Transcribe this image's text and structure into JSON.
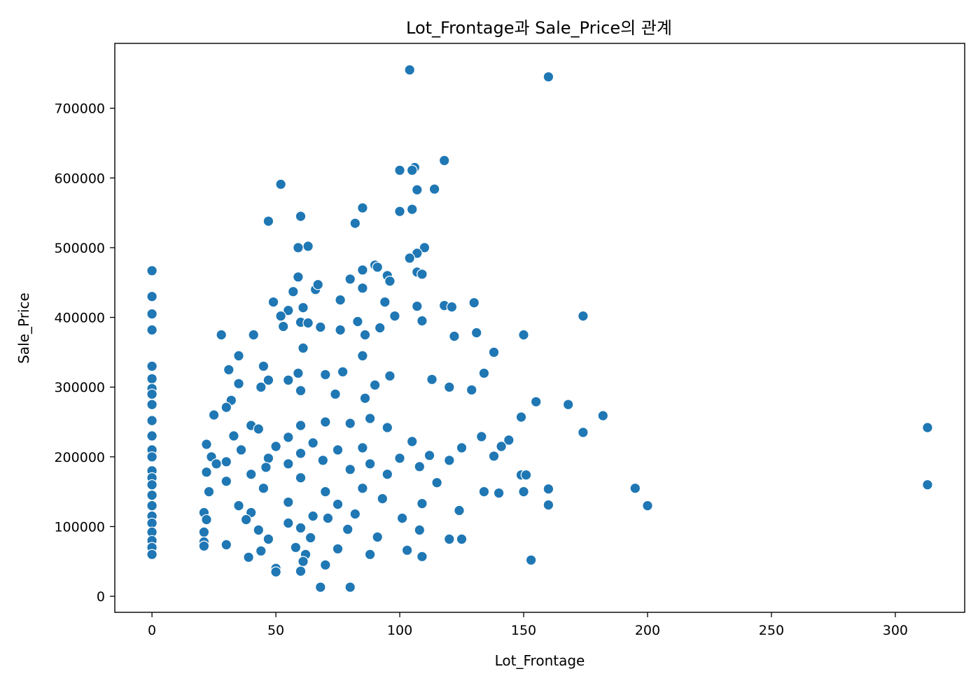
{
  "chart_data": {
    "type": "scatter",
    "title": "Lot_Frontage과 Sale_Price의 관계",
    "xlabel": "Lot_Frontage",
    "ylabel": "Sale_Price",
    "xlim": [
      -15,
      328
    ],
    "ylim": [
      -23000,
      793000
    ],
    "xticks": [
      0,
      50,
      100,
      150,
      200,
      250,
      300
    ],
    "xtick_labels": [
      "0",
      "50",
      "100",
      "150",
      "200",
      "250",
      "300"
    ],
    "yticks": [
      0,
      100000,
      200000,
      300000,
      400000,
      500000,
      600000,
      700000
    ],
    "ytick_labels": [
      "0",
      "100000",
      "200000",
      "300000",
      "400000",
      "500000",
      "600000",
      "700000"
    ],
    "marker_color": "#1f77b4",
    "marker_edge": "#ffffff",
    "grid": false,
    "points": [
      [
        104,
        755000
      ],
      [
        160,
        745000
      ],
      [
        118,
        625000
      ],
      [
        106,
        615000
      ],
      [
        100,
        611000
      ],
      [
        105,
        611000
      ],
      [
        52,
        591000
      ],
      [
        114,
        584000
      ],
      [
        107,
        583000
      ],
      [
        85,
        557000
      ],
      [
        105,
        555000
      ],
      [
        100,
        552000
      ],
      [
        60,
        545000
      ],
      [
        47,
        538000
      ],
      [
        82,
        535000
      ],
      [
        63,
        502000
      ],
      [
        59,
        500000
      ],
      [
        110,
        500000
      ],
      [
        107,
        492000
      ],
      [
        104,
        485000
      ],
      [
        90,
        475000
      ],
      [
        91,
        472000
      ],
      [
        85,
        468000
      ],
      [
        0,
        467000
      ],
      [
        107,
        465000
      ],
      [
        109,
        462000
      ],
      [
        95,
        460000
      ],
      [
        59,
        458000
      ],
      [
        96,
        452000
      ],
      [
        80,
        455000
      ],
      [
        85,
        442000
      ],
      [
        66,
        440000
      ],
      [
        67,
        447000
      ],
      [
        57,
        437000
      ],
      [
        0,
        430000
      ],
      [
        49,
        422000
      ],
      [
        76,
        425000
      ],
      [
        130,
        421000
      ],
      [
        61,
        414000
      ],
      [
        94,
        422000
      ],
      [
        118,
        417000
      ],
      [
        107,
        416000
      ],
      [
        121,
        415000
      ],
      [
        0,
        405000
      ],
      [
        174,
        402000
      ],
      [
        55,
        410000
      ],
      [
        98,
        402000
      ],
      [
        52,
        402000
      ],
      [
        60,
        393000
      ],
      [
        63,
        392000
      ],
      [
        83,
        394000
      ],
      [
        109,
        395000
      ],
      [
        92,
        385000
      ],
      [
        53,
        387000
      ],
      [
        68,
        386000
      ],
      [
        0,
        382000
      ],
      [
        76,
        382000
      ],
      [
        131,
        378000
      ],
      [
        150,
        375000
      ],
      [
        28,
        375000
      ],
      [
        41,
        375000
      ],
      [
        86,
        375000
      ],
      [
        122,
        373000
      ],
      [
        61,
        356000
      ],
      [
        35,
        345000
      ],
      [
        138,
        350000
      ],
      [
        85,
        345000
      ],
      [
        45,
        330000
      ],
      [
        31,
        325000
      ],
      [
        0,
        330000
      ],
      [
        59,
        320000
      ],
      [
        77,
        322000
      ],
      [
        70,
        318000
      ],
      [
        134,
        320000
      ],
      [
        113,
        311000
      ],
      [
        47,
        310000
      ],
      [
        0,
        312000
      ],
      [
        35,
        305000
      ],
      [
        44,
        300000
      ],
      [
        90,
        303000
      ],
      [
        55,
        310000
      ],
      [
        96,
        316000
      ],
      [
        0,
        298000
      ],
      [
        120,
        300000
      ],
      [
        129,
        296000
      ],
      [
        0,
        290000
      ],
      [
        32,
        281000
      ],
      [
        155,
        279000
      ],
      [
        168,
        275000
      ],
      [
        0,
        275000
      ],
      [
        60,
        295000
      ],
      [
        74,
        290000
      ],
      [
        86,
        284000
      ],
      [
        25,
        260000
      ],
      [
        30,
        271000
      ],
      [
        182,
        259000
      ],
      [
        149,
        257000
      ],
      [
        0,
        252000
      ],
      [
        40,
        245000
      ],
      [
        313,
        242000
      ],
      [
        60,
        245000
      ],
      [
        43,
        240000
      ],
      [
        70,
        250000
      ],
      [
        88,
        255000
      ],
      [
        80,
        248000
      ],
      [
        95,
        242000
      ],
      [
        174,
        235000
      ],
      [
        0,
        230000
      ],
      [
        33,
        230000
      ],
      [
        133,
        229000
      ],
      [
        144,
        224000
      ],
      [
        55,
        228000
      ],
      [
        65,
        220000
      ],
      [
        22,
        218000
      ],
      [
        50,
        215000
      ],
      [
        141,
        215000
      ],
      [
        105,
        222000
      ],
      [
        0,
        210000
      ],
      [
        85,
        213000
      ],
      [
        75,
        210000
      ],
      [
        125,
        213000
      ],
      [
        36,
        210000
      ],
      [
        60,
        205000
      ],
      [
        0,
        200000
      ],
      [
        24,
        200000
      ],
      [
        47,
        198000
      ],
      [
        100,
        198000
      ],
      [
        138,
        201000
      ],
      [
        112,
        202000
      ],
      [
        30,
        193000
      ],
      [
        69,
        195000
      ],
      [
        55,
        190000
      ],
      [
        120,
        195000
      ],
      [
        88,
        190000
      ],
      [
        0,
        180000
      ],
      [
        26,
        190000
      ],
      [
        46,
        185000
      ],
      [
        80,
        182000
      ],
      [
        40,
        175000
      ],
      [
        22,
        178000
      ],
      [
        108,
        186000
      ],
      [
        149,
        174000
      ],
      [
        151,
        174000
      ],
      [
        0,
        170000
      ],
      [
        60,
        170000
      ],
      [
        95,
        175000
      ],
      [
        313,
        160000
      ],
      [
        160,
        154000
      ],
      [
        195,
        155000
      ],
      [
        0,
        160000
      ],
      [
        30,
        165000
      ],
      [
        115,
        163000
      ],
      [
        140,
        148000
      ],
      [
        150,
        150000
      ],
      [
        0,
        145000
      ],
      [
        23,
        150000
      ],
      [
        45,
        155000
      ],
      [
        70,
        150000
      ],
      [
        85,
        155000
      ],
      [
        134,
        150000
      ],
      [
        0,
        130000
      ],
      [
        160,
        131000
      ],
      [
        200,
        130000
      ],
      [
        35,
        130000
      ],
      [
        55,
        135000
      ],
      [
        75,
        132000
      ],
      [
        93,
        140000
      ],
      [
        109,
        133000
      ],
      [
        21,
        120000
      ],
      [
        0,
        115000
      ],
      [
        40,
        120000
      ],
      [
        65,
        115000
      ],
      [
        82,
        118000
      ],
      [
        124,
        123000
      ],
      [
        0,
        105000
      ],
      [
        22,
        110000
      ],
      [
        38,
        110000
      ],
      [
        55,
        105000
      ],
      [
        71,
        112000
      ],
      [
        101,
        112000
      ],
      [
        0,
        92000
      ],
      [
        21,
        92000
      ],
      [
        43,
        95000
      ],
      [
        60,
        98000
      ],
      [
        79,
        96000
      ],
      [
        108,
        95000
      ],
      [
        0,
        80000
      ],
      [
        21,
        78000
      ],
      [
        30,
        74000
      ],
      [
        47,
        82000
      ],
      [
        64,
        84000
      ],
      [
        91,
        85000
      ],
      [
        120,
        82000
      ],
      [
        125,
        82000
      ],
      [
        0,
        70000
      ],
      [
        21,
        72000
      ],
      [
        44,
        65000
      ],
      [
        58,
        70000
      ],
      [
        75,
        68000
      ],
      [
        103,
        66000
      ],
      [
        0,
        60000
      ],
      [
        39,
        56000
      ],
      [
        62,
        60000
      ],
      [
        88,
        60000
      ],
      [
        109,
        57000
      ],
      [
        153,
        52000
      ],
      [
        50,
        40000
      ],
      [
        61,
        50000
      ],
      [
        70,
        45000
      ],
      [
        60,
        36000
      ],
      [
        50,
        35000
      ],
      [
        68,
        13000
      ],
      [
        80,
        13000
      ]
    ]
  }
}
